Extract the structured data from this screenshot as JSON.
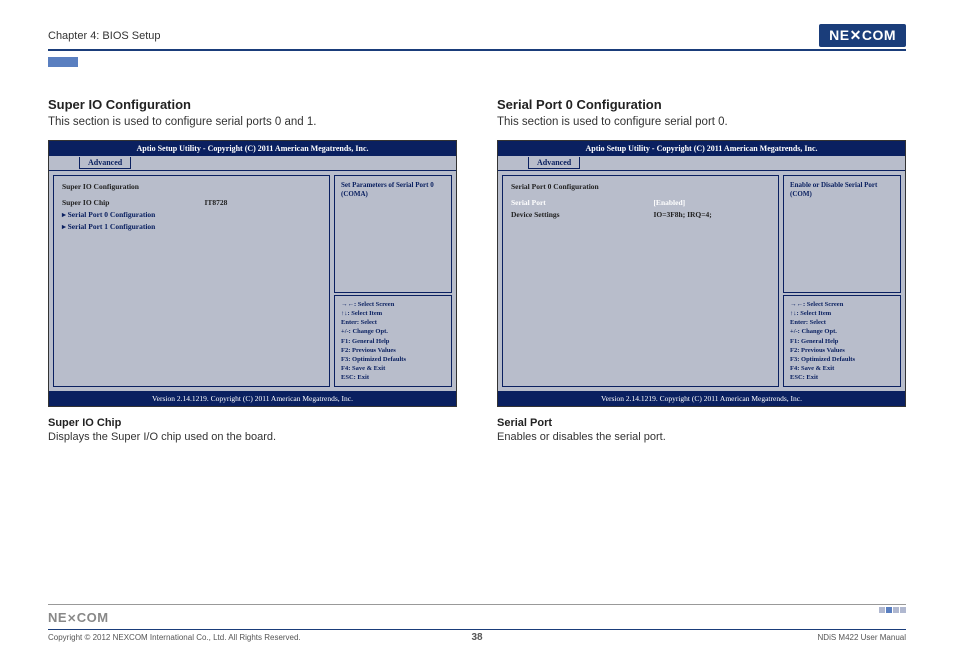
{
  "header": {
    "chapter": "Chapter 4: BIOS Setup",
    "logo_text": "NE COM",
    "logo_x": "X"
  },
  "left": {
    "title": "Super IO Configuration",
    "desc": "This section is used to configure serial ports 0 and 1.",
    "bios": {
      "title": "Aptio Setup Utility - Copyright (C) 2011 American Megatrends, Inc.",
      "tab": "Advanced",
      "heading": "Super IO Configuration",
      "rows": [
        {
          "label": "Super IO Chip",
          "value": "IT8728",
          "style": "normal"
        },
        {
          "label": "▸ Serial Port 0 Configuration",
          "value": "",
          "style": "link"
        },
        {
          "label": "▸ Serial Port 1 Configuration",
          "value": "",
          "style": "link"
        }
      ],
      "help": "Set Parameters of Serial Port 0 (COMA)",
      "keys": [
        "→←: Select Screen",
        "↑↓: Select Item",
        "Enter: Select",
        "+/-: Change Opt.",
        "F1: General Help",
        "F2: Previous Values",
        "F3: Optimized Defaults",
        "F4: Save & Exit",
        "ESC: Exit"
      ],
      "footer": "Version 2.14.1219. Copyright (C) 2011 American Megatrends, Inc."
    },
    "sub_title": "Super IO Chip",
    "sub_desc": "Displays the Super I/O chip used on the board."
  },
  "right": {
    "title": "Serial Port 0 Configuration",
    "desc": "This section is used to configure serial port 0.",
    "bios": {
      "title": "Aptio Setup Utility - Copyright (C) 2011 American Megatrends, Inc.",
      "tab": "Advanced",
      "heading": "Serial Port 0 Configuration",
      "rows": [
        {
          "label": "Serial Port",
          "value": "[Enabled]",
          "style": "sel"
        },
        {
          "label": "Device Settings",
          "value": "IO=3F8h; IRQ=4;",
          "style": "normal"
        }
      ],
      "help": "Enable or Disable Serial Port (COM)",
      "keys": [
        "→←: Select Screen",
        "↑↓: Select Item",
        "Enter: Select",
        "+/-: Change Opt.",
        "F1: General Help",
        "F2: Previous Values",
        "F3: Optimized Defaults",
        "F4: Save & Exit",
        "ESC: Exit"
      ],
      "footer": "Version 2.14.1219. Copyright (C) 2011 American Megatrends, Inc."
    },
    "sub_title": "Serial Port",
    "sub_desc": "Enables or disables the serial port."
  },
  "footer": {
    "logo": "NE COM",
    "copyright": "Copyright © 2012 NEXCOM International Co., Ltd. All Rights Reserved.",
    "page": "38",
    "manual": "NDiS M422 User Manual"
  }
}
